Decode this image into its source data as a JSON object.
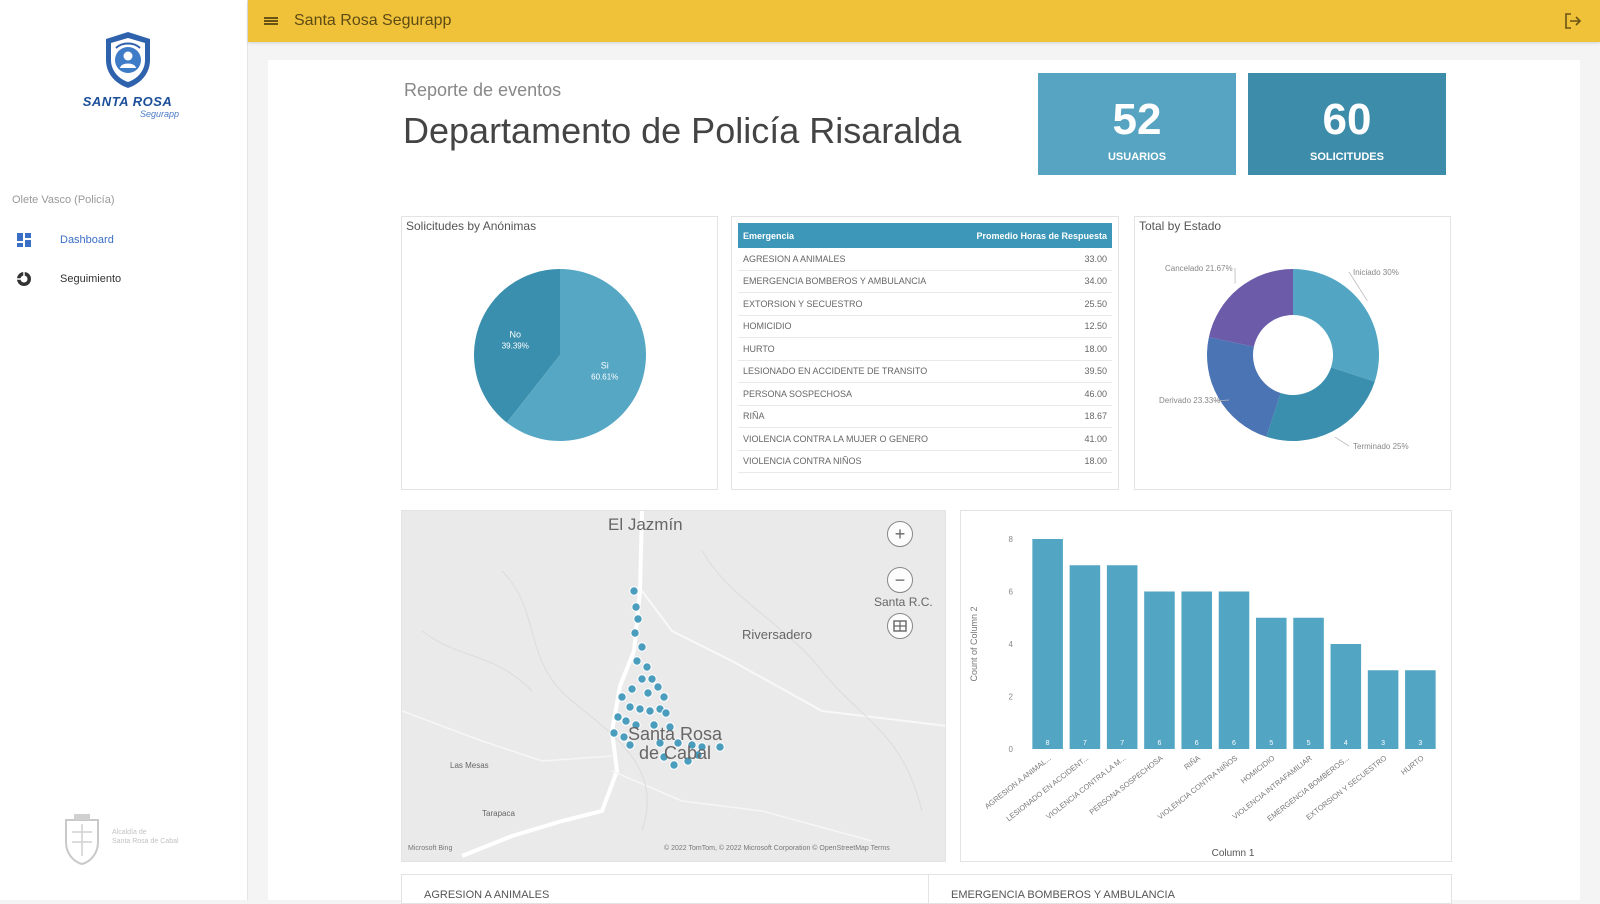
{
  "app": {
    "title": "Santa Rosa Segurapp"
  },
  "sidebar": {
    "brand": "SANTA ROSA",
    "brand_sub": "Segurapp",
    "user": "Olete Vasco (Policía)",
    "items": [
      {
        "label": "Dashboard",
        "icon": "dashboard-icon",
        "active": true
      },
      {
        "label": "Seguimiento",
        "icon": "tracking-icon",
        "active": false
      }
    ],
    "footer_text": [
      "Alcaldía de",
      "Santa Rosa de Cabal"
    ]
  },
  "header": {
    "subtitle": "Reporte de eventos",
    "title": "Departamento de Policía Risaralda"
  },
  "kpis": [
    {
      "value": "52",
      "label": "USUARIOS",
      "color": "#56a4c1"
    },
    {
      "value": "60",
      "label": "SOLICITUDES",
      "color": "#3d8caa"
    }
  ],
  "pie": {
    "title": "Solicitudes by Anónimas",
    "slices": [
      {
        "label": "No",
        "pct": "39.39%",
        "value": 39.39,
        "color": "#3a8fae"
      },
      {
        "label": "Si",
        "pct": "60.61%",
        "value": 60.61,
        "color": "#56a7c4"
      }
    ]
  },
  "table": {
    "col_emergency": "Emergencia",
    "col_avg": "Promedio Horas de Respuesta",
    "rows": [
      {
        "name": "AGRESION A ANIMALES",
        "value": "33.00"
      },
      {
        "name": "EMERGENCIA BOMBEROS Y AMBULANCIA",
        "value": "34.00"
      },
      {
        "name": "EXTORSION Y SECUESTRO",
        "value": "25.50"
      },
      {
        "name": "HOMICIDIO",
        "value": "12.50"
      },
      {
        "name": "HURTO",
        "value": "18.00"
      },
      {
        "name": "LESIONADO EN ACCIDENTE DE TRANSITO",
        "value": "39.50"
      },
      {
        "name": "PERSONA SOSPECHOSA",
        "value": "46.00"
      },
      {
        "name": "RIÑA",
        "value": "18.67"
      },
      {
        "name": "VIOLENCIA CONTRA LA MUJER O GENERO",
        "value": "41.00"
      },
      {
        "name": "VIOLENCIA CONTRA NIÑOS",
        "value": "18.00"
      }
    ]
  },
  "donut": {
    "title": "Total by Estado",
    "slices": [
      {
        "label": "Iniciado 30%",
        "value": 30,
        "color": "#52a6c3"
      },
      {
        "label": "Terminado 25%",
        "value": 25,
        "color": "#3a8fae"
      },
      {
        "label": "Derivado 23.33%",
        "value": 23.33,
        "color": "#4a74b3"
      },
      {
        "label": "Cancelado 21.67%",
        "value": 21.67,
        "color": "#6b5ba8"
      }
    ]
  },
  "map": {
    "labels": [
      "El Jazmín",
      "Santa R.C.",
      "Riversadero",
      "Santa Rosa de Cabal",
      "Las Mesas",
      "Tarapaca"
    ],
    "attribution": "© 2022 TomTom, © 2022 Microsoft Corporation  © OpenStreetMap  Terms",
    "provider": "Microsoft Bing"
  },
  "chart_data": {
    "type": "bar",
    "categories": [
      "AGRESION A ANIMAL...",
      "LESIONADO EN ACCIDENT...",
      "VIOLENCIA CONTRA LA M...",
      "PERSONA SOSPECHOSA",
      "RIÑA",
      "VIOLENCIA CONTRA NIÑOS",
      "HOMICIDIO",
      "VIOLENCIA INTRAFAMILIAR",
      "EMERGENCIA BOMBEROS...",
      "EXTORSION Y SECUESTRO",
      "HURTO"
    ],
    "values": [
      8,
      7,
      7,
      6,
      6,
      6,
      5,
      5,
      4,
      3,
      3
    ],
    "xlabel": "Column 1",
    "ylabel": "Count of Column 2",
    "yticks": [
      "0",
      "2",
      "4",
      "6",
      "8"
    ],
    "ylim": [
      0,
      8
    ],
    "color": "#52a6c3"
  },
  "bottom_cards": [
    "AGRESION A ANIMALES",
    "EMERGENCIA BOMBEROS Y AMBULANCIA"
  ]
}
